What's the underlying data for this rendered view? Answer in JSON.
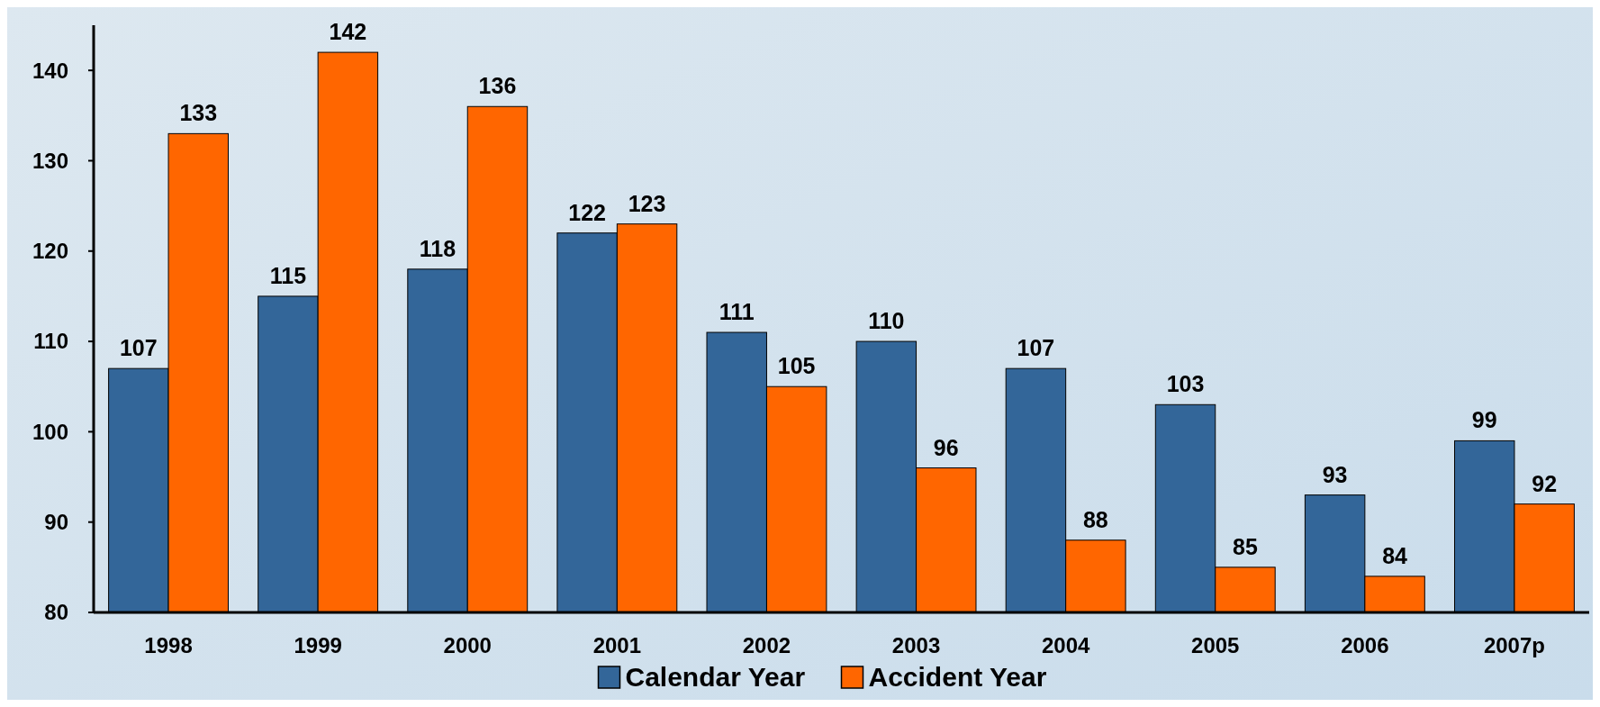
{
  "chart_data": {
    "type": "bar",
    "categories": [
      "1998",
      "1999",
      "2000",
      "2001",
      "2002",
      "2003",
      "2004",
      "2005",
      "2006",
      "2007p"
    ],
    "series": [
      {
        "name": "Calendar Year",
        "color": "#336699",
        "values": [
          107,
          115,
          118,
          122,
          111,
          110,
          107,
          103,
          93,
          99
        ]
      },
      {
        "name": "Accident Year",
        "color": "#ff6600",
        "values": [
          133,
          142,
          136,
          123,
          105,
          96,
          88,
          85,
          84,
          92
        ]
      }
    ],
    "ylim": [
      80,
      145
    ],
    "yticks": [
      80,
      90,
      100,
      110,
      120,
      130,
      140
    ],
    "data_labels": true,
    "legend": "bottom",
    "grid": false
  }
}
